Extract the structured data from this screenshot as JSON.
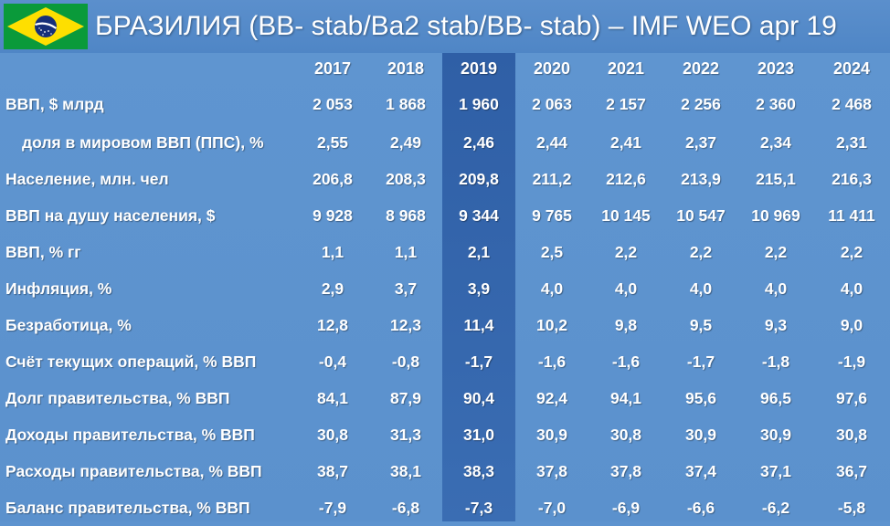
{
  "header": {
    "title": "БРАЗИЛИЯ (BB- stab/Ba2 stab/BB- stab) – IMF WEO apr 19",
    "flag_icon": "brazil-flag-icon",
    "flag_colors": {
      "green": "#0a9a3a",
      "yellow": "#fedf00",
      "blue": "#17307a"
    }
  },
  "colors": {
    "background": "#5d93cf",
    "highlight_column": "#2f5fa6",
    "text": "#ffffff"
  },
  "table": {
    "years": [
      "2017",
      "2018",
      "2019",
      "2020",
      "2021",
      "2022",
      "2023",
      "2024"
    ],
    "highlighted_year": "2019",
    "rows": [
      {
        "label": "ВВП, $ млрд",
        "values": [
          "2 053",
          "1 868",
          "1 960",
          "2 063",
          "2 157",
          "2 256",
          "2 360",
          "2 468"
        ]
      },
      {
        "label": "доля в мировом ВВП (ППС), %",
        "indent": true,
        "values": [
          "2,55",
          "2,49",
          "2,46",
          "2,44",
          "2,41",
          "2,37",
          "2,34",
          "2,31"
        ]
      },
      {
        "label": "Население, млн. чел",
        "values": [
          "206,8",
          "208,3",
          "209,8",
          "211,2",
          "212,6",
          "213,9",
          "215,1",
          "216,3"
        ]
      },
      {
        "label": "ВВП на душу населения, $",
        "values": [
          "9 928",
          "8 968",
          "9 344",
          "9 765",
          "10 145",
          "10 547",
          "10 969",
          "11 411"
        ]
      },
      {
        "label": "ВВП, % гг",
        "values": [
          "1,1",
          "1,1",
          "2,1",
          "2,5",
          "2,2",
          "2,2",
          "2,2",
          "2,2"
        ]
      },
      {
        "label": "Инфляция, %",
        "values": [
          "2,9",
          "3,7",
          "3,9",
          "4,0",
          "4,0",
          "4,0",
          "4,0",
          "4,0"
        ]
      },
      {
        "label": "Безработица, %",
        "values": [
          "12,8",
          "12,3",
          "11,4",
          "10,2",
          "9,8",
          "9,5",
          "9,3",
          "9,0"
        ]
      },
      {
        "label": "Счёт текущих операций, % ВВП",
        "values": [
          "-0,4",
          "-0,8",
          "-1,7",
          "-1,6",
          "-1,6",
          "-1,7",
          "-1,8",
          "-1,9"
        ]
      },
      {
        "label": "Долг правительства, % ВВП",
        "values": [
          "84,1",
          "87,9",
          "90,4",
          "92,4",
          "94,1",
          "95,6",
          "96,5",
          "97,6"
        ]
      },
      {
        "label": "Доходы правительства, % ВВП",
        "values": [
          "30,8",
          "31,3",
          "31,0",
          "30,9",
          "30,8",
          "30,9",
          "30,9",
          "30,8"
        ]
      },
      {
        "label": "Расходы правительства, % ВВП",
        "values": [
          "38,7",
          "38,1",
          "38,3",
          "37,8",
          "37,8",
          "37,4",
          "37,1",
          "36,7"
        ]
      },
      {
        "label": "Баланс правительства, % ВВП",
        "values": [
          "-7,9",
          "-6,8",
          "-7,3",
          "-7,0",
          "-6,9",
          "-6,6",
          "-6,2",
          "-5,8"
        ]
      }
    ]
  }
}
